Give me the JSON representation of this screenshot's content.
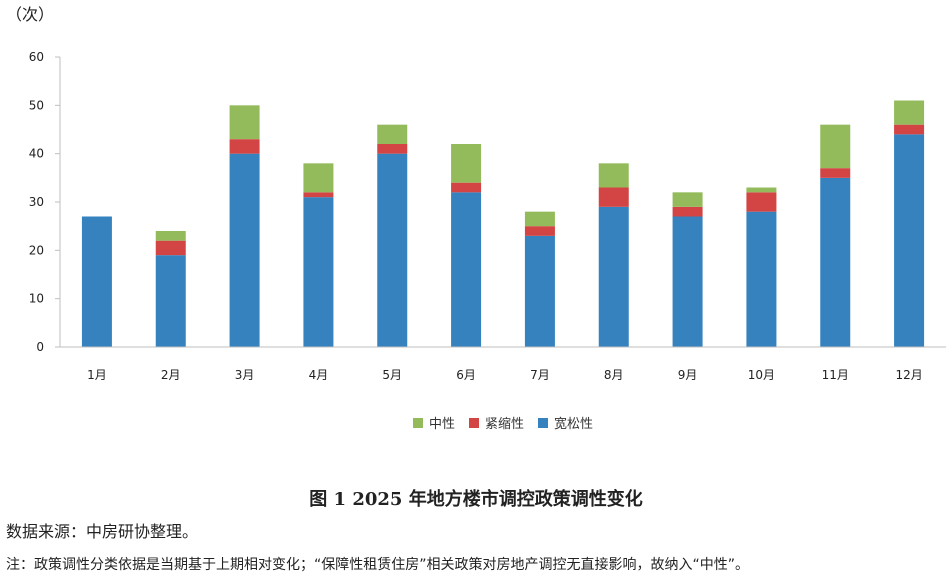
{
  "unit_label": "（次）",
  "figure_title": "图 1 2025 年地方楼市调控政策调性变化",
  "data_source": "数据来源：中房研协整理。",
  "footnote": "注：政策调性分类依据是当期基于上期相对变化；“保障性租赁住房”相关政策对房地产调控无直接影响，故纳入“中性”。",
  "chart_data": {
    "type": "bar",
    "stacked": true,
    "categories": [
      "1月",
      "2月",
      "3月",
      "4月",
      "5月",
      "6月",
      "7月",
      "8月",
      "9月",
      "10月",
      "11月",
      "12月"
    ],
    "series": [
      {
        "name": "宽松性",
        "color": "#3582BF",
        "values": [
          27,
          19,
          40,
          31,
          40,
          32,
          23,
          29,
          27,
          28,
          35,
          44
        ]
      },
      {
        "name": "紧缩性",
        "color": "#D34444",
        "values": [
          0,
          3,
          3,
          1,
          2,
          2,
          2,
          4,
          2,
          4,
          2,
          2
        ]
      },
      {
        "name": "中性",
        "color": "#93BB5B",
        "values": [
          0,
          2,
          7,
          6,
          4,
          8,
          3,
          5,
          3,
          1,
          9,
          5
        ]
      }
    ],
    "legend_order": [
      "中性",
      "紧缩性",
      "宽松性"
    ],
    "legend_position": "bottom-center",
    "ylim": [
      0,
      60
    ],
    "yticks": [
      0,
      10,
      20,
      30,
      40,
      50,
      60
    ],
    "grid": false
  }
}
